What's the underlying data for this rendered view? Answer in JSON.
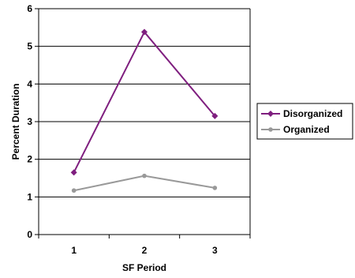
{
  "chart_data": {
    "type": "line",
    "title": "",
    "xlabel": "SF Period",
    "ylabel": "Percent Duration",
    "categories": [
      "1",
      "2",
      "3"
    ],
    "ylim": [
      0,
      6
    ],
    "yticks": [
      "0",
      "1",
      "2",
      "3",
      "4",
      "5",
      "6"
    ],
    "grid": true,
    "legend_position": "right",
    "series": [
      {
        "name": "Disorganized",
        "values": [
          1.65,
          5.38,
          3.15
        ],
        "color": "#7f1f7f",
        "marker": "diamond"
      },
      {
        "name": "Organized",
        "values": [
          1.17,
          1.56,
          1.24
        ],
        "color": "#999999",
        "marker": "circle"
      }
    ]
  }
}
